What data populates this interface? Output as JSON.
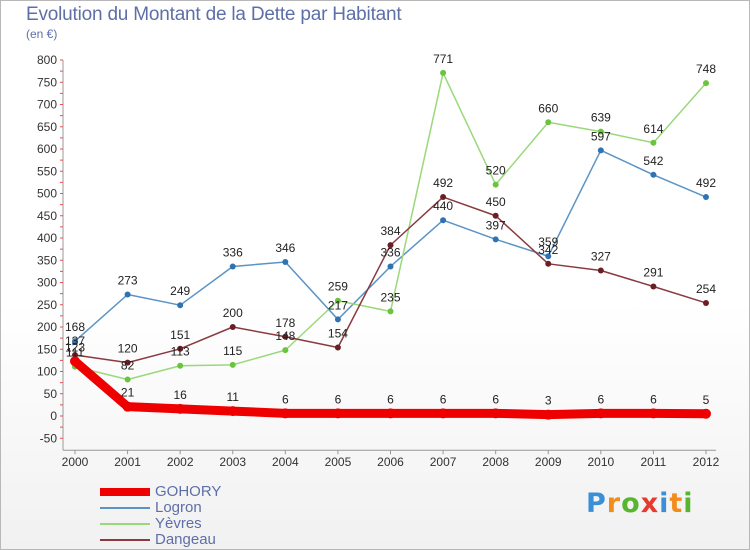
{
  "chart_data": {
    "type": "line",
    "title": "Evolution du Montant de la Dette par Habitant",
    "subtitle": "(en €)",
    "x": [
      "2000",
      "2001",
      "2002",
      "2003",
      "2004",
      "2005",
      "2006",
      "2007",
      "2008",
      "2009",
      "2010",
      "2011",
      "2012"
    ],
    "ylim": [
      -50,
      800
    ],
    "yticks": [
      -50,
      0,
      50,
      100,
      150,
      200,
      250,
      300,
      350,
      400,
      450,
      500,
      550,
      600,
      650,
      700,
      750,
      800
    ],
    "grid": false,
    "legend_position": "bottom-left",
    "series": [
      {
        "name": "Logron",
        "color": "#5a94c6",
        "marker": "#2f73b3",
        "width": 1.5,
        "values": [
          168,
          273,
          249,
          336,
          346,
          217,
          336,
          440,
          397,
          359,
          597,
          542,
          492
        ]
      },
      {
        "name": "Yèvres",
        "color": "#9ad87a",
        "marker": "#6cc43c",
        "width": 1.5,
        "values": [
          111,
          82,
          113,
          115,
          148,
          259,
          235,
          771,
          520,
          660,
          639,
          614,
          748
        ]
      },
      {
        "name": "Dangeau",
        "color": "#8a3a3f",
        "marker": "#6b1f25",
        "width": 1.5,
        "values": [
          137,
          120,
          151,
          200,
          178,
          154,
          384,
          492,
          450,
          342,
          327,
          291,
          254
        ]
      },
      {
        "name": "GOHORY",
        "color": "#ee0000",
        "marker": "#ee0000",
        "width": 9,
        "values": [
          123,
          21,
          16,
          11,
          6,
          6,
          6,
          6,
          6,
          3,
          6,
          6,
          5
        ]
      }
    ]
  },
  "logo": {
    "letters": [
      "P",
      "r",
      "o",
      "x",
      "i",
      "t",
      "i"
    ],
    "colors": [
      "#3a8fd6",
      "#f28c1a",
      "#58b52f",
      "#e53b2e",
      "#3a8fd6",
      "#f28c1a",
      "#58b52f"
    ]
  }
}
